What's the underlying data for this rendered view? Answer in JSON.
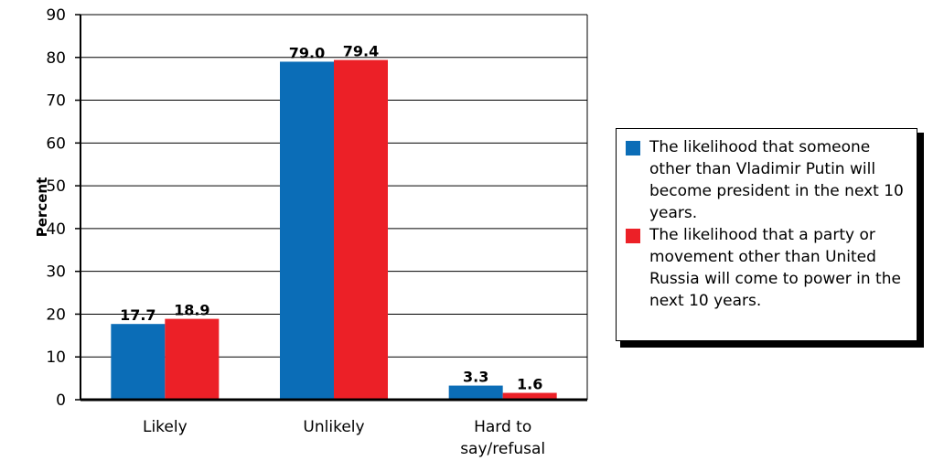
{
  "chart_data": {
    "type": "bar",
    "ylabel": "Percent",
    "xlabel": "",
    "ylim": [
      0,
      90
    ],
    "yticks": [
      0,
      10,
      20,
      30,
      40,
      50,
      60,
      70,
      80,
      90
    ],
    "categories": [
      "Likely",
      "Unlikely",
      "Hard to say/refusal"
    ],
    "category_lines": [
      [
        "Likely"
      ],
      [
        "Unlikely"
      ],
      [
        "Hard to",
        "say/refusal"
      ]
    ],
    "grid": true,
    "legend_position": "right",
    "series": [
      {
        "name": "The likelihood that someone other than Vladimir Putin will become president in the next 10 years.",
        "color": "#0b6db7",
        "values": [
          17.7,
          79.0,
          3.3
        ],
        "labels": [
          "17.7",
          "79.0",
          "3.3"
        ]
      },
      {
        "name": "The likelihood that a party or movement other than United Russia will come to power in the next 10 years.",
        "color": "#ec2027",
        "values": [
          18.9,
          79.4,
          1.6
        ],
        "labels": [
          "18.9",
          "79.4",
          "1.6"
        ]
      }
    ]
  }
}
